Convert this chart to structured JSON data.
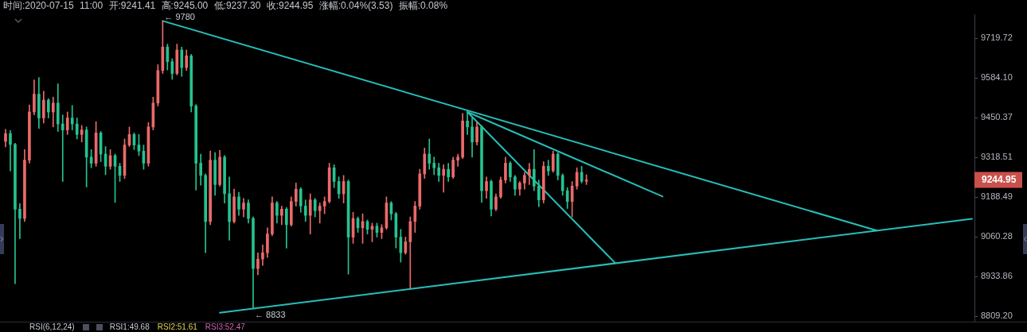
{
  "chart_data": {
    "type": "candlestick",
    "title": "时间:2020-07-15 11:00 开:9241.41 高:9245.00 低:9237.30 收:9244.95 涨幅:0.04%(3.53) 振幅:0.08%",
    "categories": [
      null,
      null,
      null,
      null,
      null,
      null,
      null,
      null,
      null,
      null,
      null,
      null,
      null,
      null,
      null,
      null,
      null,
      null,
      null,
      null,
      null,
      null,
      null,
      null,
      null,
      null,
      null,
      null,
      null,
      null,
      null,
      null,
      null,
      null,
      null,
      null,
      null,
      null,
      null,
      null,
      null,
      null,
      null,
      null,
      null,
      null,
      null,
      null,
      null,
      null,
      null,
      null,
      null,
      null,
      null,
      null,
      null,
      null,
      null,
      null,
      null,
      null,
      null,
      null,
      null,
      null,
      null,
      null,
      null,
      null,
      null,
      null,
      null,
      null,
      null,
      null,
      null,
      null,
      null,
      null,
      null,
      null,
      null,
      null,
      null,
      null,
      null,
      null,
      null,
      null,
      null,
      null,
      null,
      null,
      null,
      null,
      null,
      null,
      null,
      null,
      null,
      null,
      null,
      null,
      null,
      null,
      null,
      null,
      null,
      null,
      null,
      null,
      null,
      null,
      null,
      null,
      null,
      null,
      null,
      null,
      null,
      null,
      null,
      null,
      null,
      null,
      null,
      null,
      null,
      null,
      null,
      null,
      null,
      null,
      null,
      null,
      null,
      null,
      null,
      null,
      null,
      null,
      null,
      null,
      null,
      null,
      null,
      null,
      null,
      null,
      null,
      null,
      null,
      null,
      null,
      null,
      null,
      null,
      null,
      null,
      null,
      null,
      null,
      null,
      null,
      null,
      null,
      null,
      null,
      null,
      null,
      null,
      null,
      null,
      null,
      null,
      null,
      null,
      null,
      null,
      null,
      null,
      null,
      null,
      null,
      null,
      null,
      null,
      null,
      null,
      null,
      null,
      null,
      null,
      null,
      null,
      null,
      null,
      null,
      null,
      null,
      null,
      null,
      null
    ],
    "ohlc": [
      [
        9372,
        9412,
        9354,
        9398
      ],
      [
        9398,
        9408,
        9275,
        9362
      ],
      [
        9362,
        9366,
        8912,
        9150
      ],
      [
        9150,
        9168,
        9055,
        9120
      ],
      [
        9120,
        9345,
        9110,
        9310
      ],
      [
        9310,
        9494,
        9300,
        9470
      ],
      [
        9470,
        9578,
        9460,
        9530
      ],
      [
        9530,
        9586,
        9415,
        9450
      ],
      [
        9450,
        9540,
        9433,
        9510
      ],
      [
        9510,
        9515,
        9450,
        9470
      ],
      [
        9470,
        9520,
        9420,
        9500
      ],
      [
        9500,
        9565,
        9405,
        9430
      ],
      [
        9430,
        9460,
        9240,
        9410
      ],
      [
        9410,
        9470,
        9395,
        9450
      ],
      [
        9450,
        9492,
        9410,
        9430
      ],
      [
        9430,
        9450,
        9380,
        9395
      ],
      [
        9395,
        9425,
        9370,
        9410
      ],
      [
        9410,
        9420,
        9222,
        9320
      ],
      [
        9320,
        9345,
        9285,
        9300
      ],
      [
        9300,
        9438,
        9290,
        9400
      ],
      [
        9400,
        9405,
        9305,
        9330
      ],
      [
        9330,
        9355,
        9262,
        9290
      ],
      [
        9290,
        9345,
        9280,
        9325
      ],
      [
        9325,
        9330,
        9172,
        9290
      ],
      [
        9290,
        9300,
        9240,
        9260
      ],
      [
        9260,
        9380,
        9250,
        9360
      ],
      [
        9360,
        9420,
        9355,
        9395
      ],
      [
        9395,
        9400,
        9345,
        9360
      ],
      [
        9360,
        9395,
        9325,
        9340
      ],
      [
        9340,
        9360,
        9280,
        9300
      ],
      [
        9300,
        9435,
        9290,
        9420
      ],
      [
        9420,
        9520,
        9410,
        9500
      ],
      [
        9500,
        9630,
        9490,
        9610
      ],
      [
        9610,
        9780,
        9600,
        9690
      ],
      [
        9690,
        9700,
        9612,
        9640
      ],
      [
        9640,
        9650,
        9580,
        9600
      ],
      [
        9600,
        9700,
        9595,
        9680
      ],
      [
        9680,
        9690,
        9590,
        9620
      ],
      [
        9620,
        9680,
        9610,
        9660
      ],
      [
        9660,
        9665,
        9470,
        9490
      ],
      [
        9490,
        9495,
        9212,
        9300
      ],
      [
        9300,
        9330,
        9228,
        9260
      ],
      [
        9260,
        9265,
        9010,
        9110
      ],
      [
        9110,
        9340,
        9100,
        9310
      ],
      [
        9310,
        9335,
        9195,
        9230
      ],
      [
        9230,
        9342,
        9225,
        9320
      ],
      [
        9320,
        9325,
        9170,
        9200
      ],
      [
        9200,
        9255,
        9050,
        9110
      ],
      [
        9110,
        9215,
        9105,
        9190
      ],
      [
        9190,
        9205,
        9130,
        9150
      ],
      [
        9150,
        9185,
        9125,
        9170
      ],
      [
        9170,
        9180,
        9105,
        9120
      ],
      [
        9120,
        9125,
        8833,
        8960
      ],
      [
        8960,
        9010,
        8940,
        8990
      ],
      [
        8990,
        9035,
        8970,
        9010
      ],
      [
        9010,
        9090,
        8995,
        9070
      ],
      [
        9070,
        9190,
        9065,
        9170
      ],
      [
        9170,
        9175,
        9105,
        9130
      ],
      [
        9130,
        9160,
        9100,
        9150
      ],
      [
        9150,
        9155,
        9025,
        9100
      ],
      [
        9100,
        9190,
        9095,
        9175
      ],
      [
        9175,
        9235,
        9160,
        9215
      ],
      [
        9215,
        9220,
        9140,
        9160
      ],
      [
        9160,
        9180,
        9110,
        9130
      ],
      [
        9130,
        9200,
        9070,
        9180
      ],
      [
        9180,
        9185,
        9125,
        9145
      ],
      [
        9145,
        9170,
        9105,
        9160
      ],
      [
        9160,
        9190,
        9135,
        9175
      ],
      [
        9175,
        9300,
        9170,
        9285
      ],
      [
        9285,
        9295,
        9220,
        9240
      ],
      [
        9240,
        9255,
        9185,
        9200
      ],
      [
        9200,
        9260,
        9170,
        9240
      ],
      [
        9240,
        9245,
        8942,
        9060
      ],
      [
        9060,
        9140,
        9040,
        9120
      ],
      [
        9120,
        9125,
        9075,
        9090
      ],
      [
        9090,
        9135,
        9040,
        9110
      ],
      [
        9110,
        9115,
        9070,
        9085
      ],
      [
        9085,
        9105,
        9045,
        9095
      ],
      [
        9095,
        9105,
        9060,
        9075
      ],
      [
        9075,
        9100,
        9055,
        9090
      ],
      [
        9090,
        9190,
        9085,
        9170
      ],
      [
        9170,
        9175,
        9115,
        9135
      ],
      [
        9135,
        9140,
        9025,
        9060
      ],
      [
        9060,
        9085,
        8980,
        9010
      ],
      [
        9010,
        9060,
        9005,
        9045
      ],
      [
        9045,
        9125,
        8898,
        9110
      ],
      [
        9110,
        9175,
        9075,
        9160
      ],
      [
        9160,
        9280,
        9150,
        9265
      ],
      [
        9265,
        9350,
        9250,
        9330
      ],
      [
        9330,
        9380,
        9280,
        9300
      ],
      [
        9300,
        9320,
        9262,
        9285
      ],
      [
        9285,
        9300,
        9240,
        9260
      ],
      [
        9260,
        9295,
        9205,
        9280
      ],
      [
        9280,
        9300,
        9240,
        9255
      ],
      [
        9255,
        9320,
        9250,
        9310
      ],
      [
        9310,
        9330,
        9290,
        9320
      ],
      [
        9320,
        9465,
        9315,
        9440
      ],
      [
        9440,
        9470,
        9395,
        9420
      ],
      [
        9420,
        9450,
        9320,
        9370
      ],
      [
        9370,
        9435,
        9360,
        9420
      ],
      [
        9420,
        9425,
        9172,
        9210
      ],
      [
        9210,
        9255,
        9185,
        9240
      ],
      [
        9240,
        9245,
        9128,
        9150
      ],
      [
        9150,
        9200,
        9145,
        9190
      ],
      [
        9190,
        9255,
        9185,
        9245
      ],
      [
        9245,
        9320,
        9235,
        9300
      ],
      [
        9300,
        9305,
        9240,
        9255
      ],
      [
        9255,
        9260,
        9195,
        9215
      ],
      [
        9215,
        9240,
        9195,
        9235
      ],
      [
        9235,
        9270,
        9215,
        9260
      ],
      [
        9260,
        9300,
        9230,
        9280
      ],
      [
        9280,
        9345,
        9210,
        9225
      ],
      [
        9225,
        9245,
        9158,
        9180
      ],
      [
        9180,
        9305,
        9170,
        9290
      ],
      [
        9290,
        9310,
        9260,
        9275
      ],
      [
        9275,
        9340,
        9270,
        9330
      ],
      [
        9330,
        9335,
        9245,
        9260
      ],
      [
        9260,
        9265,
        9195,
        9210
      ],
      [
        9210,
        9220,
        9152,
        9175
      ],
      [
        9175,
        9240,
        9125,
        9225
      ],
      [
        9225,
        9285,
        9215,
        9270
      ],
      [
        9270,
        9290,
        9235,
        9241
      ],
      [
        9241,
        9262,
        9230,
        9245
      ],
      null,
      null,
      null,
      null,
      null,
      null,
      null,
      null,
      null,
      null,
      null,
      null,
      null,
      null,
      null,
      null,
      null,
      null,
      null,
      null,
      null,
      null,
      null,
      null,
      null,
      null,
      null,
      null,
      null,
      null,
      null,
      null,
      null,
      null,
      null,
      null,
      null,
      null,
      null,
      null,
      null,
      null,
      null,
      null,
      null,
      null,
      null,
      null,
      null,
      null,
      null,
      null,
      null,
      null,
      null,
      null,
      null,
      null,
      null,
      null,
      null,
      null,
      null,
      null,
      null,
      null,
      null,
      null,
      null,
      null,
      null,
      null,
      null,
      null,
      null,
      null,
      null,
      null,
      null,
      null,
      null
    ],
    "colors": [
      "#eb6a6a",
      "#26c28f",
      "#26c28f",
      "#26c28f",
      "#eb6a6a",
      "#eb6a6a",
      "#eb6a6a",
      "#26c28f",
      "#eb6a6a",
      "#26c28f",
      "#eb6a6a",
      "#26c28f",
      "#26c28f",
      "#eb6a6a",
      "#26c28f",
      "#26c28f",
      "#eb6a6a",
      "#26c28f",
      "#26c28f",
      "#eb6a6a",
      "#26c28f",
      "#26c28f",
      "#eb6a6a",
      "#26c28f",
      "#26c28f",
      "#eb6a6a",
      "#eb6a6a",
      "#26c28f",
      "#26c28f",
      "#26c28f",
      "#eb6a6a",
      "#eb6a6a",
      "#eb6a6a",
      "#eb6a6a",
      "#26c28f",
      "#26c28f",
      "#eb6a6a",
      "#26c28f",
      "#eb6a6a",
      "#26c28f",
      "#26c28f",
      "#26c28f",
      "#26c28f",
      "#eb6a6a",
      "#26c28f",
      "#eb6a6a",
      "#26c28f",
      "#26c28f",
      "#eb6a6a",
      "#26c28f",
      "#eb6a6a",
      "#26c28f",
      "#26c28f",
      "#eb6a6a",
      "#eb6a6a",
      "#eb6a6a",
      "#eb6a6a",
      "#26c28f",
      "#eb6a6a",
      "#26c28f",
      "#eb6a6a",
      "#eb6a6a",
      "#26c28f",
      "#26c28f",
      "#eb6a6a",
      "#26c28f",
      "#eb6a6a",
      "#eb6a6a",
      "#eb6a6a",
      "#26c28f",
      "#26c28f",
      "#eb6a6a",
      "#26c28f",
      "#eb6a6a",
      "#26c28f",
      "#eb6a6a",
      "#26c28f",
      "#eb6a6a",
      "#26c28f",
      "#eb6a6a",
      "#eb6a6a",
      "#26c28f",
      "#26c28f",
      "#26c28f",
      "#eb6a6a",
      "#eb6a6a",
      "#eb6a6a",
      "#eb6a6a",
      "#eb6a6a",
      "#26c28f",
      "#26c28f",
      "#26c28f",
      "#eb6a6a",
      "#26c28f",
      "#eb6a6a",
      "#eb6a6a",
      "#eb6a6a",
      "#26c28f",
      "#26c28f",
      "#eb6a6a",
      "#26c28f",
      "#eb6a6a",
      "#26c28f",
      "#eb6a6a",
      "#eb6a6a",
      "#eb6a6a",
      "#26c28f",
      "#26c28f",
      "#eb6a6a",
      "#eb6a6a",
      "#eb6a6a",
      "#26c28f",
      "#26c28f",
      "#eb6a6a",
      "#26c28f",
      "#eb6a6a",
      "#26c28f",
      "#26c28f",
      "#26c28f",
      "#eb6a6a",
      "#eb6a6a",
      "#26c28f",
      "#eb6a6a",
      null,
      null,
      null,
      null,
      null,
      null,
      null,
      null,
      null,
      null,
      null,
      null,
      null,
      null,
      null,
      null,
      null,
      null,
      null,
      null,
      null,
      null,
      null,
      null,
      null,
      null,
      null,
      null,
      null,
      null,
      null,
      null,
      null,
      null,
      null,
      null,
      null,
      null,
      null,
      null,
      null,
      null,
      null,
      null,
      null,
      null,
      null,
      null,
      null,
      null,
      null,
      null,
      null,
      null,
      null,
      null,
      null,
      null,
      null,
      null,
      null,
      null,
      null,
      null,
      null,
      null,
      null,
      null,
      null,
      null,
      null,
      null,
      null,
      null,
      null,
      null,
      null,
      null,
      null,
      null,
      null
    ],
    "series": [
      {
        "type": "line",
        "color": "#26beb9",
        "values": [
          null,
          null,
          null,
          null,
          null,
          null,
          null,
          null,
          null,
          null,
          null,
          null,
          null,
          null,
          null,
          null,
          null,
          null,
          null,
          null,
          null,
          null,
          null,
          null,
          null,
          null,
          null,
          null,
          null,
          null,
          null,
          null,
          null,
          9780,
          null,
          null,
          null,
          null,
          null,
          null,
          null,
          null,
          null,
          null,
          null,
          null,
          null,
          null,
          null,
          null,
          null,
          null,
          null,
          null,
          null,
          null,
          null,
          null,
          null,
          null,
          null,
          null,
          null,
          null,
          null,
          null,
          null,
          null,
          null,
          null,
          null,
          null,
          null,
          null,
          null,
          null,
          null,
          null,
          null,
          null,
          null,
          null,
          null,
          null,
          null,
          null,
          null,
          null,
          null,
          null,
          null,
          null,
          null,
          null,
          null,
          null,
          null,
          null,
          null,
          null,
          null,
          null,
          null,
          null,
          null,
          null,
          null,
          null,
          null,
          null,
          null,
          null,
          null,
          null,
          null,
          null,
          null,
          null,
          null,
          null,
          null,
          null,
          null,
          null,
          null,
          null,
          null,
          null,
          null,
          null,
          null,
          null,
          null,
          null,
          null,
          null,
          null,
          null,
          null,
          null,
          null,
          null,
          null,
          null,
          null,
          null,
          null,
          null,
          null,
          null,
          null,
          null,
          null,
          null,
          null,
          null,
          null,
          null,
          null,
          null,
          null,
          null,
          null,
          null,
          null,
          null,
          null,
          null,
          null,
          null,
          null,
          null,
          null,
          null,
          null,
          null,
          null,
          null,
          null,
          null,
          null,
          null,
          null,
          9081,
          null,
          null,
          null,
          null,
          null,
          null,
          null,
          null,
          null,
          null,
          null,
          null,
          null,
          null,
          null,
          null,
          null,
          null,
          null,
          null
        ]
      },
      {
        "type": "line",
        "color": "#26beb9",
        "values": [
          null,
          null,
          null,
          null,
          null,
          null,
          null,
          null,
          null,
          null,
          null,
          null,
          null,
          null,
          null,
          null,
          null,
          null,
          null,
          null,
          null,
          null,
          null,
          null,
          null,
          null,
          null,
          null,
          null,
          null,
          null,
          null,
          null,
          null,
          null,
          null,
          null,
          null,
          null,
          null,
          null,
          null,
          null,
          null,
          null,
          8821,
          null,
          null,
          null,
          null,
          null,
          null,
          null,
          null,
          null,
          null,
          null,
          null,
          null,
          null,
          null,
          null,
          null,
          null,
          null,
          null,
          null,
          null,
          null,
          null,
          null,
          null,
          null,
          null,
          null,
          null,
          null,
          null,
          null,
          null,
          null,
          null,
          null,
          null,
          null,
          null,
          null,
          null,
          null,
          null,
          null,
          null,
          null,
          null,
          null,
          null,
          null,
          null,
          null,
          null,
          null,
          null,
          null,
          null,
          null,
          null,
          null,
          null,
          null,
          null,
          null,
          null,
          null,
          null,
          null,
          null,
          null,
          null,
          null,
          null,
          null,
          null,
          null,
          null,
          null,
          null,
          null,
          null,
          null,
          null,
          null,
          null,
          null,
          null,
          null,
          null,
          null,
          null,
          null,
          null,
          null,
          null,
          null,
          null,
          null,
          null,
          null,
          null,
          null,
          null,
          null,
          null,
          null,
          null,
          null,
          null,
          null,
          null,
          null,
          null,
          null,
          null,
          null,
          null,
          null,
          null,
          null,
          null,
          null,
          null,
          null,
          null,
          null,
          null,
          null,
          null,
          null,
          null,
          null,
          null,
          null,
          null,
          null,
          null,
          null,
          null,
          null,
          null,
          null,
          null,
          null,
          null,
          null,
          null,
          null,
          null,
          null,
          null,
          null,
          null,
          null,
          null,
          null,
          9119
        ]
      },
      {
        "type": "line",
        "color": "#26beb9",
        "values": [
          null,
          null,
          null,
          null,
          null,
          null,
          null,
          null,
          null,
          null,
          null,
          null,
          null,
          null,
          null,
          null,
          null,
          null,
          null,
          null,
          null,
          null,
          null,
          null,
          null,
          null,
          null,
          null,
          null,
          null,
          null,
          null,
          null,
          null,
          null,
          null,
          null,
          null,
          null,
          null,
          null,
          null,
          null,
          null,
          null,
          null,
          null,
          null,
          null,
          null,
          null,
          null,
          null,
          null,
          null,
          null,
          null,
          null,
          null,
          null,
          null,
          null,
          null,
          null,
          null,
          null,
          null,
          null,
          null,
          null,
          null,
          null,
          null,
          null,
          null,
          null,
          null,
          null,
          null,
          null,
          null,
          null,
          null,
          null,
          null,
          null,
          null,
          null,
          null,
          null,
          null,
          null,
          null,
          null,
          null,
          null,
          null,
          9470,
          null,
          null,
          null,
          null,
          null,
          null,
          null,
          null,
          null,
          null,
          null,
          null,
          null,
          null,
          null,
          null,
          null,
          null,
          null,
          null,
          null,
          null,
          null,
          null,
          null,
          null,
          null,
          null,
          null,
          null,
          null,
          null,
          null,
          null,
          null,
          null,
          null,
          null,
          null,
          null,
          9191,
          null,
          null,
          null,
          null,
          null,
          null,
          null,
          null,
          null,
          null,
          null,
          null,
          null,
          null,
          null,
          null,
          null,
          null,
          null,
          null,
          null,
          null,
          null,
          null,
          null,
          null,
          null,
          null,
          null,
          null,
          null,
          null,
          null,
          null,
          null,
          null,
          null,
          null,
          null,
          null,
          null,
          null,
          null,
          null,
          null,
          null,
          null,
          null,
          null,
          null,
          null,
          null,
          null,
          null,
          null,
          null,
          null,
          null,
          null,
          null,
          null,
          null,
          null,
          null,
          null
        ]
      },
      {
        "type": "line",
        "color": "#26beb9",
        "values": [
          null,
          null,
          null,
          null,
          null,
          null,
          null,
          null,
          null,
          null,
          null,
          null,
          null,
          null,
          null,
          null,
          null,
          null,
          null,
          null,
          null,
          null,
          null,
          null,
          null,
          null,
          null,
          null,
          null,
          null,
          null,
          null,
          null,
          null,
          null,
          null,
          null,
          null,
          null,
          null,
          null,
          null,
          null,
          null,
          null,
          null,
          null,
          null,
          null,
          null,
          null,
          null,
          null,
          null,
          null,
          null,
          null,
          null,
          null,
          null,
          null,
          null,
          null,
          null,
          null,
          null,
          null,
          null,
          null,
          null,
          null,
          null,
          null,
          null,
          null,
          null,
          null,
          null,
          null,
          null,
          null,
          null,
          null,
          null,
          null,
          null,
          null,
          null,
          null,
          null,
          null,
          null,
          null,
          null,
          null,
          null,
          null,
          9470,
          null,
          null,
          null,
          null,
          null,
          null,
          null,
          null,
          null,
          null,
          null,
          null,
          null,
          null,
          null,
          null,
          null,
          null,
          null,
          null,
          null,
          null,
          null,
          null,
          null,
          null,
          null,
          null,
          null,
          null,
          8978,
          null,
          null,
          null,
          null,
          null,
          null,
          null,
          null,
          null,
          null,
          null,
          null,
          null,
          null,
          null,
          null,
          null,
          null,
          null,
          null,
          null,
          null,
          null,
          null,
          null,
          null,
          null,
          null,
          null,
          null,
          null,
          null,
          null,
          null,
          null,
          null,
          null,
          null,
          null,
          null,
          null,
          null,
          null,
          null,
          null,
          null,
          null,
          null,
          null,
          null,
          null,
          null,
          null,
          null,
          null,
          null,
          null,
          null,
          null,
          null,
          null,
          null,
          null,
          null,
          null,
          null,
          null,
          null,
          null,
          null,
          null,
          null,
          null,
          null,
          null
        ]
      }
    ],
    "ylim": [
      8793,
      9803
    ],
    "yticks": [
      {
        "value": 8809.2,
        "label": "8809.20"
      },
      8933.86,
      9060.28,
      9188.49,
      9318.51,
      9450.37,
      {
        "value": 9584.1,
        "label": "9584.10"
      },
      9719.72
    ],
    "log": "y",
    "tick_labels": "y",
    "annotations": [
      "← 9780",
      "← 8833",
      "9244.95",
      "RSI(6,12,24)",
      "RSI1:49.68",
      "RSI2:51.61",
      "RSI3:52.47"
    ]
  }
}
